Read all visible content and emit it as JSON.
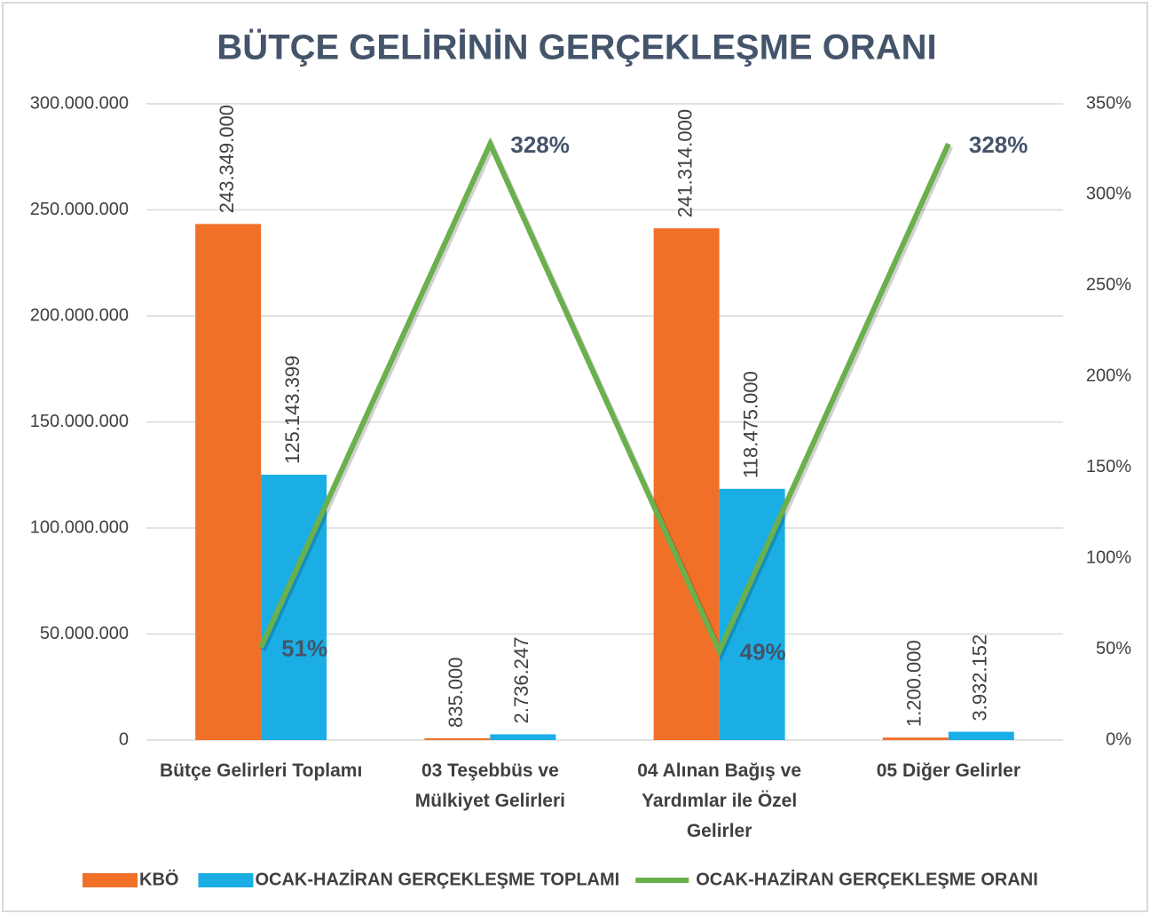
{
  "chart_data": {
    "type": "bar_line",
    "title": "BÜTÇE GELİRİNİN GERÇEKLEŞME ORANI",
    "categories": [
      "Bütçe Gelirleri Toplamı",
      "03 Teşebbüs ve Mülkiyet Gelirleri",
      "04 Alınan Bağış ve Yardımlar ile Özel Gelirler",
      "05 Diğer Gelirler"
    ],
    "series": [
      {
        "name": "KBÖ",
        "type": "bar",
        "color": "#f07028",
        "values": [
          243349000,
          835000,
          241314000,
          1200000
        ],
        "value_labels": [
          "243.349.000",
          "835.000",
          "241.314.000",
          "1.200.000"
        ]
      },
      {
        "name": "OCAK-HAZİRAN GERÇEKLEŞME TOPLAMI",
        "type": "bar",
        "color": "#1aaee5",
        "values": [
          125143399,
          2736247,
          118475000,
          3932152
        ],
        "value_labels": [
          "125.143.399",
          "2.736.247",
          "118.475.000",
          "3.932.152"
        ]
      },
      {
        "name": "OCAK-HAZİRAN GERÇEKLEŞME ORANI",
        "type": "line",
        "axis": "y2",
        "color": "#6ab04c",
        "values": [
          51,
          328,
          49,
          328
        ],
        "value_labels": [
          "51%",
          "328%",
          "49%",
          "328%"
        ]
      }
    ],
    "ylim": [
      0,
      300000000
    ],
    "yticks": [
      0,
      {
        "value": 50000000,
        "label": "50.000.000"
      },
      {
        "value": 100000000,
        "label": "100.000.000"
      },
      {
        "value": 150000000,
        "label": "150.000.000"
      },
      {
        "value": 200000000,
        "label": "200.000.000"
      },
      {
        "value": 250000000,
        "label": "250.000.000"
      },
      {
        "value": 300000000,
        "label": "300.000.000"
      }
    ],
    "y2lim": [
      0,
      350
    ],
    "y2ticks": [
      {
        "value": 0,
        "label": "0%"
      },
      {
        "value": 50,
        "label": "50%"
      },
      {
        "value": 100,
        "label": "100%"
      },
      {
        "value": 150,
        "label": "150%"
      },
      {
        "value": 200,
        "label": "200%"
      },
      {
        "value": 250,
        "label": "250%"
      },
      {
        "value": 300,
        "label": "300%"
      },
      {
        "value": 350,
        "label": "350%"
      }
    ],
    "grid": true,
    "legend": "bottom"
  }
}
